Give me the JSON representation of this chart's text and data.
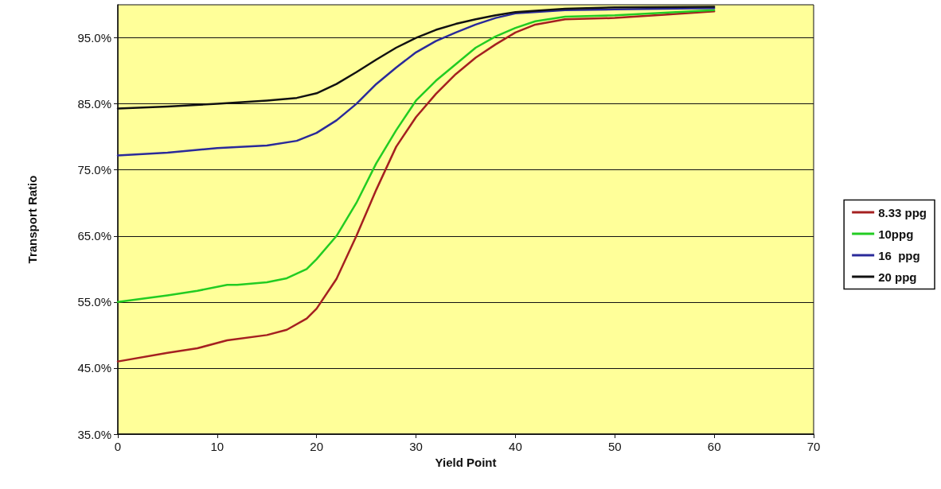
{
  "chart_data": {
    "type": "line",
    "xlabel": "Yield Point",
    "ylabel": "Transport Ratio",
    "xlim": [
      0,
      70
    ],
    "xticks": [
      0,
      10,
      20,
      30,
      40,
      50,
      60,
      70
    ],
    "ylim": [
      35,
      100
    ],
    "yticks": [
      {
        "value": 35,
        "label": "35.0%"
      },
      {
        "value": 45,
        "label": "45.0%"
      },
      {
        "value": 55,
        "label": "55.0%"
      },
      {
        "value": 65,
        "label": "65.0%"
      },
      {
        "value": 75,
        "label": "75.0%"
      },
      {
        "value": 85,
        "label": "85.0%"
      },
      {
        "value": 95,
        "label": "95.0%"
      }
    ],
    "grid": "y",
    "legend": "right",
    "marker": "none",
    "line_style": "solid",
    "series": [
      {
        "name": "8.33 ppg",
        "color": "#a52020",
        "x": [
          0,
          5,
          8,
          11,
          15,
          17,
          19,
          20,
          22,
          24,
          26,
          28,
          30,
          32,
          34,
          36,
          38,
          40,
          42,
          45,
          50,
          55,
          60
        ],
        "values": [
          46,
          47.3,
          48,
          49.2,
          50,
          50.8,
          52.5,
          54,
          58.5,
          65,
          72,
          78.5,
          83,
          86.5,
          89.5,
          92,
          94,
          95.8,
          97,
          97.8,
          98,
          98.5,
          99
        ]
      },
      {
        "name": "10ppg",
        "color": "#22cc22",
        "x": [
          0,
          5,
          8,
          11,
          12,
          15,
          17,
          19,
          20,
          22,
          24,
          26,
          28,
          30,
          32,
          34,
          36,
          38,
          40,
          42,
          45,
          50,
          55,
          60
        ],
        "values": [
          55,
          56,
          56.7,
          57.6,
          57.6,
          58,
          58.6,
          60,
          61.5,
          65,
          70,
          76,
          81,
          85.5,
          88.5,
          91,
          93.5,
          95.2,
          96.5,
          97.5,
          98.2,
          98.4,
          98.8,
          99.2
        ]
      },
      {
        "name": "16  ppg",
        "color": "#2a2a9a",
        "x": [
          0,
          5,
          10,
          15,
          18,
          20,
          22,
          24,
          26,
          28,
          30,
          32,
          34,
          36,
          38,
          40,
          45,
          50,
          60
        ],
        "values": [
          77.2,
          77.6,
          78.3,
          78.7,
          79.4,
          80.6,
          82.5,
          85,
          88,
          90.5,
          92.8,
          94.5,
          95.8,
          97,
          98,
          98.7,
          99.2,
          99.3,
          99.5
        ]
      },
      {
        "name": "20 ppg",
        "color": "#111111",
        "x": [
          0,
          5,
          10,
          15,
          18,
          20,
          22,
          24,
          26,
          28,
          30,
          32,
          34,
          36,
          38,
          40,
          45,
          50,
          60
        ],
        "values": [
          84.3,
          84.6,
          85,
          85.5,
          85.9,
          86.6,
          88,
          89.8,
          91.7,
          93.5,
          95,
          96.2,
          97.1,
          97.8,
          98.4,
          98.9,
          99.4,
          99.6,
          99.7
        ]
      }
    ]
  }
}
